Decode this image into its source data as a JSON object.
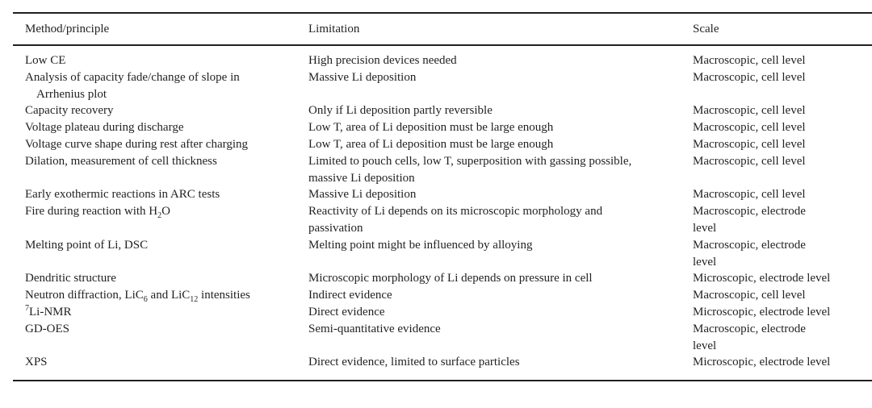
{
  "headers": {
    "method": "Method/principle",
    "limitation": "Limitation",
    "scale": "Scale"
  },
  "rows": [
    {
      "method": "Low CE",
      "limitation": "High precision devices needed",
      "scale": "Macroscopic, cell level"
    },
    {
      "method": "Analysis of capacity fade/change of slope in",
      "method2": "Arrhenius plot",
      "limitation": "Massive Li deposition",
      "scale": "Macroscopic, cell level"
    },
    {
      "method": "Capacity recovery",
      "limitation": "Only if Li deposition partly reversible",
      "scale": "Macroscopic, cell level"
    },
    {
      "method": "Voltage plateau during discharge",
      "limitation": "Low T, area of Li deposition must be large enough",
      "scale": "Macroscopic, cell level"
    },
    {
      "method": "Voltage curve shape during rest after charging",
      "limitation": "Low T, area of Li deposition must be large enough",
      "scale": "Macroscopic, cell level"
    },
    {
      "method": "Dilation, measurement of cell thickness",
      "limitation": "Limited to pouch cells, low T, superposition with gassing possible,",
      "limitation2": "massive Li deposition",
      "scale": "Macroscopic, cell level"
    },
    {
      "method": "Early exothermic reactions in ARC tests",
      "limitation": "Massive Li deposition",
      "scale": "Macroscopic, cell level"
    },
    {
      "method": "Fire during reaction with H",
      "method_sub": "2",
      "method_after": "O",
      "limitation": "Reactivity of Li depends on its microscopic morphology and",
      "limitation2": "passivation",
      "scale": "Macroscopic, electrode",
      "scale2": "level"
    },
    {
      "method": "Melting point of Li, DSC",
      "limitation": "Melting point might be influenced by alloying",
      "scale": "Macroscopic, electrode",
      "scale2": "level"
    },
    {
      "method": "Dendritic structure",
      "limitation": "Microscopic morphology of Li depends on pressure in cell",
      "scale": "Microscopic, electrode level"
    },
    {
      "method": "Neutron diffraction, LiC",
      "method_sub": "6",
      "method_after": " and LiC",
      "method_sub2": "12",
      "method_after2": " intensities",
      "limitation": "Indirect evidence",
      "scale": "Macroscopic, cell level"
    },
    {
      "method_sup": "7",
      "method": "Li-NMR",
      "limitation": "Direct evidence",
      "scale": "Microscopic, electrode level"
    },
    {
      "method": "GD-OES",
      "limitation": "Semi-quantitative evidence",
      "scale": "Macroscopic, electrode",
      "scale2": "level"
    },
    {
      "method": "XPS",
      "limitation": "Direct evidence, limited to surface particles",
      "scale": "Microscopic, electrode level"
    }
  ]
}
